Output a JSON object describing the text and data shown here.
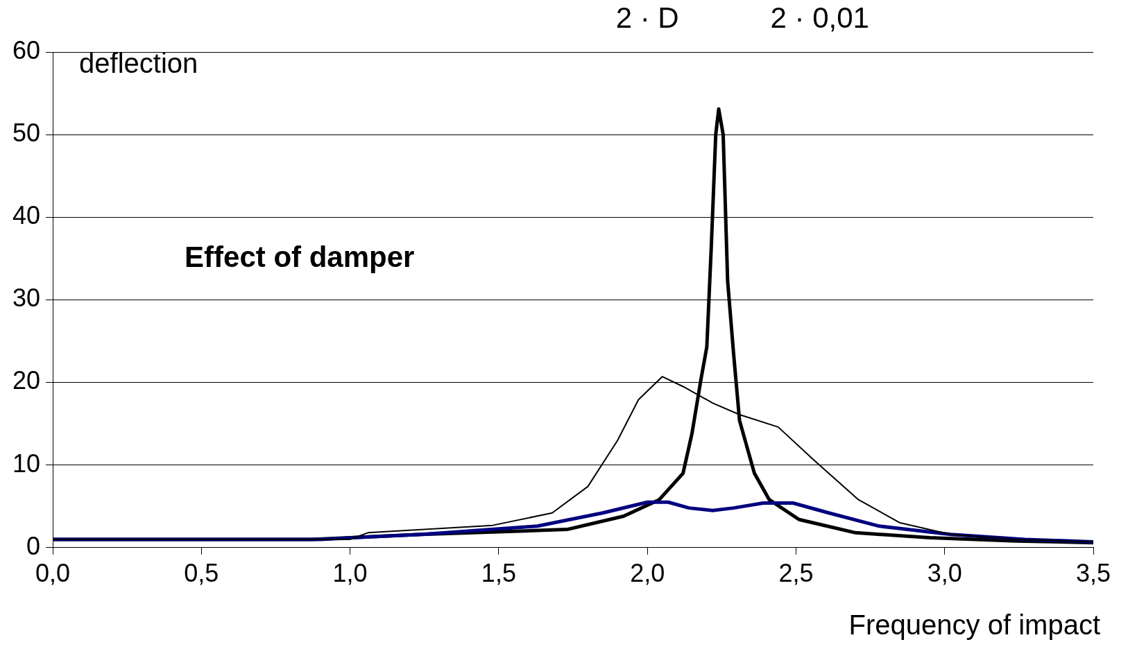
{
  "chart_data": {
    "type": "line",
    "ylabel": "deflection",
    "xlabel": "Frequency of impact",
    "annotations": [
      "Effect of damper",
      "2 · D",
      "2 · 0,01"
    ],
    "xlim": [
      0,
      3.5
    ],
    "ylim": [
      0,
      60
    ],
    "xticks": [
      {
        "value": 0,
        "label": "0,0"
      },
      {
        "value": 0.5,
        "label": "0,5"
      },
      {
        "value": 1,
        "label": "1,0"
      },
      {
        "value": 1.5,
        "label": "1,5"
      },
      {
        "value": 2,
        "label": "2,0"
      },
      {
        "value": 2.5,
        "label": "2,5"
      },
      {
        "value": 3,
        "label": "3,0"
      },
      {
        "value": 3.5,
        "label": "3,5"
      }
    ],
    "yticks": [
      0,
      10,
      20,
      30,
      40,
      50,
      60
    ],
    "grid": "y",
    "legend": false,
    "marker": "none",
    "line_style": "solid",
    "series": [
      {
        "color": "#000000",
        "x": [
          0,
          1.0,
          1.06,
          1.48,
          1.68,
          1.8,
          1.9,
          1.97,
          2.05,
          2.12,
          2.22,
          2.31,
          2.44,
          2.56,
          2.71,
          2.85,
          3.02,
          3.24,
          3.5
        ],
        "values": [
          1,
          1,
          1.8,
          2.7,
          4.2,
          7.4,
          13,
          17.9,
          20.7,
          19.5,
          17.5,
          16.1,
          14.6,
          10.6,
          5.8,
          3,
          1.6,
          1,
          0.7
        ]
      },
      {
        "color": "#000080",
        "x": [
          0,
          0.9,
          1.24,
          1.63,
          1.85,
          2.0,
          2.07,
          2.14,
          2.22,
          2.29,
          2.39,
          2.49,
          2.61,
          2.78,
          3.02,
          3.27,
          3.5
        ],
        "values": [
          1,
          1,
          1.6,
          2.6,
          4.2,
          5.5,
          5.5,
          4.8,
          4.5,
          4.8,
          5.4,
          5.4,
          4.2,
          2.6,
          1.6,
          1,
          0.7
        ]
      },
      {
        "color": "#000000",
        "x": [
          0,
          0.87,
          1.24,
          1.73,
          1.92,
          2.04,
          2.12,
          2.15,
          2.18,
          2.2,
          2.215,
          2.23,
          2.24,
          2.255,
          2.27,
          2.29,
          2.31,
          2.36,
          2.41,
          2.51,
          2.7,
          2.95,
          3.24,
          3.5
        ],
        "values": [
          1,
          1,
          1.6,
          2.2,
          3.8,
          5.8,
          9,
          13.8,
          20.3,
          24.3,
          36.4,
          50,
          53.1,
          50,
          32.3,
          23.5,
          15.4,
          9,
          5.8,
          3.4,
          1.8,
          1.2,
          0.8,
          0.6
        ]
      }
    ]
  }
}
